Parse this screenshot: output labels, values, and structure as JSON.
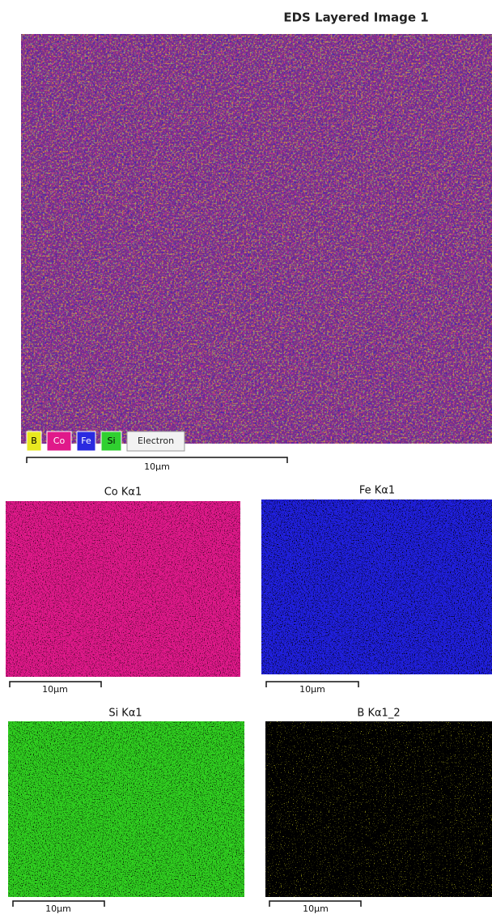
{
  "header": {
    "title": "EDS Layered Image 1"
  },
  "legend": [
    "B",
    "Co",
    "Fe",
    "Si",
    "Electron"
  ],
  "main_scale_label": "10µm",
  "panels": [
    {
      "title": "Co Kα1",
      "scale_label": "10µm"
    },
    {
      "title": "Fe Kα1",
      "scale_label": "10µm"
    },
    {
      "title": "Si Kα1",
      "scale_label": "10µm"
    },
    {
      "title": "B Kα1_2",
      "scale_label": "10µm"
    }
  ]
}
